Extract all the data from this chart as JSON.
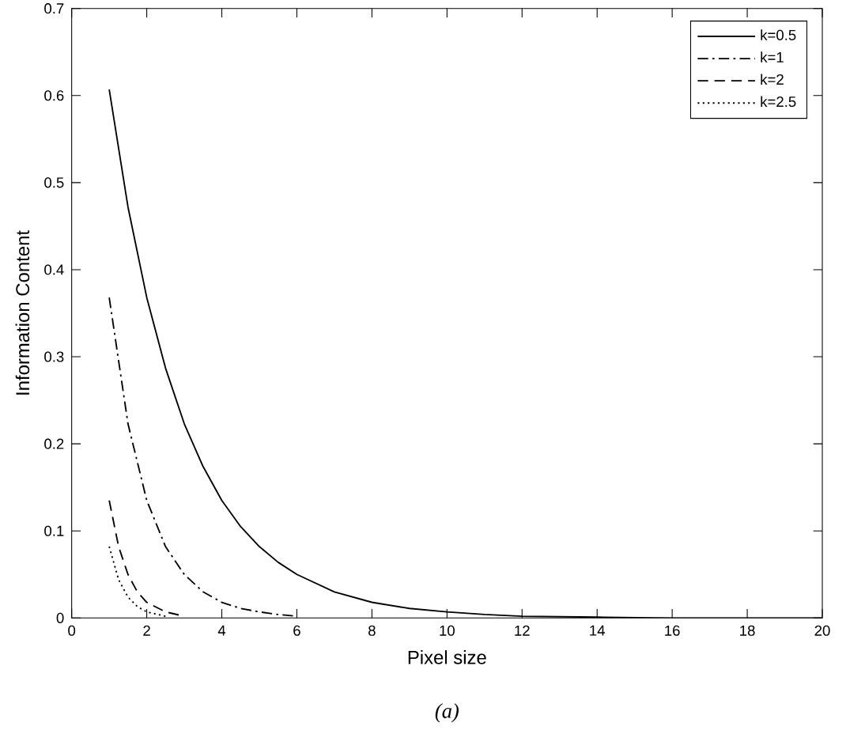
{
  "chart_data": {
    "type": "line",
    "xlabel": "Pixel size",
    "ylabel": "Information Content",
    "annotations": [
      "(a)"
    ],
    "xlim": [
      0,
      20
    ],
    "ylim": [
      0,
      0.7
    ],
    "xticks": [
      0,
      2,
      4,
      6,
      8,
      10,
      12,
      14,
      16,
      18,
      20
    ],
    "yticks": [
      0,
      0.1,
      0.2,
      0.3,
      0.4,
      0.5,
      0.6,
      0.7
    ],
    "grid": false,
    "legend": "top right",
    "marker": "none",
    "series": [
      {
        "name": "k=0.5",
        "color": "#000000",
        "line_style": "solid",
        "x": [
          1,
          1.5,
          2,
          2.5,
          3,
          3.5,
          4,
          4.5,
          5,
          5.5,
          6,
          7,
          8,
          9,
          10,
          11,
          12,
          14,
          16,
          18,
          20
        ],
        "values": [
          0.607,
          0.472,
          0.368,
          0.287,
          0.223,
          0.174,
          0.135,
          0.105,
          0.082,
          0.064,
          0.05,
          0.03,
          0.018,
          0.011,
          0.007,
          0.004,
          0.002,
          0.001,
          0,
          0,
          0
        ]
      },
      {
        "name": "k=1",
        "color": "#000000",
        "line_style": "dashdot",
        "x": [
          1,
          1.5,
          2,
          2.5,
          3,
          3.5,
          4,
          4.5,
          5,
          5.5,
          6
        ],
        "values": [
          0.368,
          0.223,
          0.135,
          0.082,
          0.05,
          0.03,
          0.018,
          0.011,
          0.007,
          0.004,
          0.002
        ]
      },
      {
        "name": "k=2",
        "color": "#000000",
        "line_style": "dashed",
        "x": [
          1,
          1.25,
          1.5,
          1.75,
          2,
          2.5,
          3
        ],
        "values": [
          0.135,
          0.082,
          0.05,
          0.03,
          0.018,
          0.007,
          0.002
        ]
      },
      {
        "name": "k=2.5",
        "color": "#000000",
        "line_style": "dotted",
        "x": [
          1,
          1.25,
          1.5,
          1.75,
          2,
          2.5
        ],
        "values": [
          0.082,
          0.044,
          0.024,
          0.013,
          0.007,
          0.002
        ]
      }
    ]
  }
}
